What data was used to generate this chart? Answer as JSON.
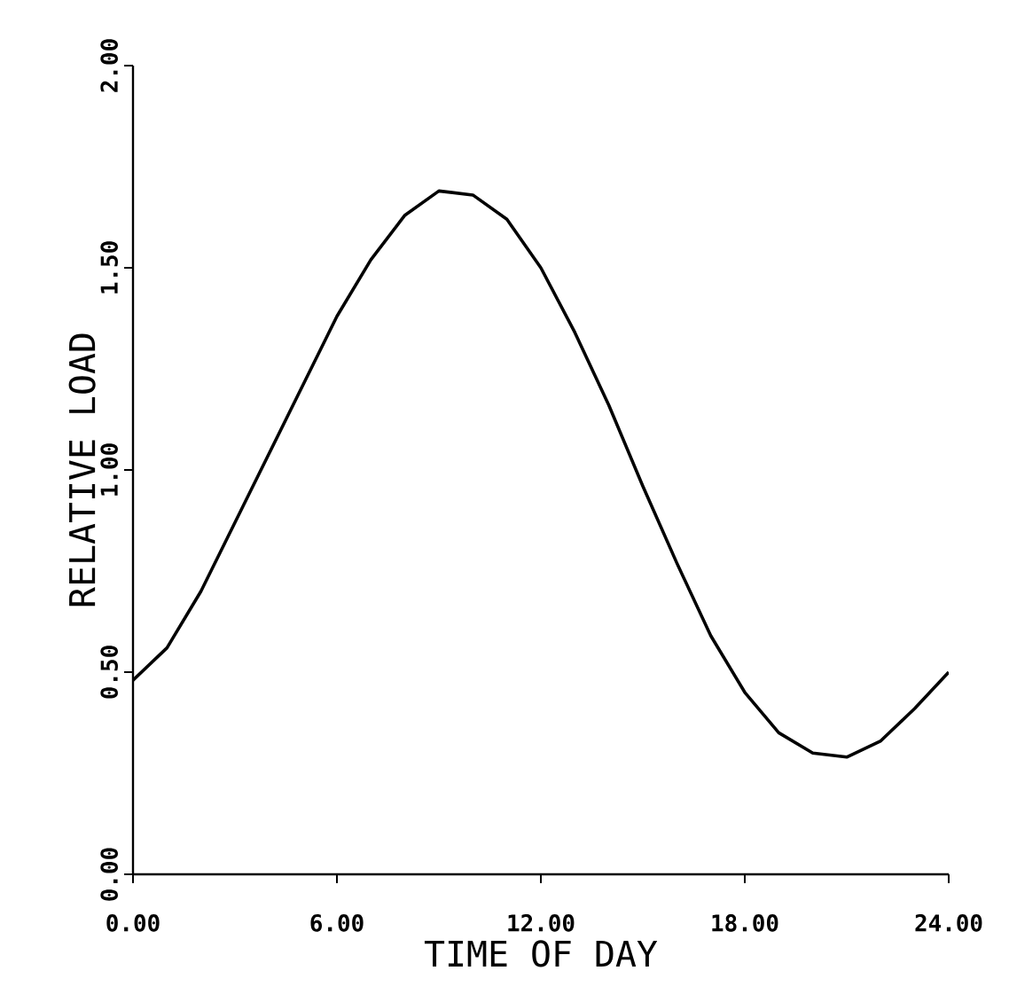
{
  "chart_data": {
    "type": "line",
    "xlabel": "TIME OF DAY",
    "ylabel": "RELATIVE LOAD",
    "x": [
      0,
      1,
      2,
      3,
      4,
      5,
      6,
      7,
      8,
      9,
      10,
      11,
      12,
      13,
      14,
      15,
      16,
      17,
      18,
      19,
      20,
      21,
      22,
      23,
      24
    ],
    "values": [
      0.48,
      0.56,
      0.7,
      0.87,
      1.04,
      1.21,
      1.38,
      1.52,
      1.63,
      1.69,
      1.68,
      1.62,
      1.5,
      1.34,
      1.16,
      0.96,
      0.77,
      0.59,
      0.45,
      0.35,
      0.3,
      0.29,
      0.33,
      0.41,
      0.5
    ],
    "color": "#000000",
    "xlim": [
      0,
      24
    ],
    "ylim": [
      0,
      2
    ],
    "xticks": [
      {
        "value": 0,
        "label": "0.00"
      },
      {
        "value": 6,
        "label": "6.00"
      },
      {
        "value": 12,
        "label": "12.00"
      },
      {
        "value": 18,
        "label": "18.00"
      },
      {
        "value": 24,
        "label": "24.00"
      }
    ],
    "yticks": [
      {
        "value": 0,
        "label": "0.00"
      },
      {
        "value": 0.5,
        "label": "0.50"
      },
      {
        "value": 1,
        "label": "1.00"
      },
      {
        "value": 1.5,
        "label": "1.50"
      },
      {
        "value": 2,
        "label": "2.00"
      }
    ],
    "grid": false,
    "legend": false,
    "marker": "none",
    "line_style": "solid"
  }
}
